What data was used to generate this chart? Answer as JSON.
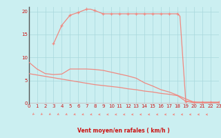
{
  "bg_color": "#cbeff1",
  "grid_color": "#a8d8dc",
  "line_color": "#f08880",
  "text_color": "#cc1111",
  "axis_color": "#666666",
  "xlabel": "Vent moyen/en rafales ( km/h )",
  "xlim": [
    0,
    23
  ],
  "ylim": [
    0,
    21
  ],
  "yticks": [
    0,
    5,
    10,
    15,
    20
  ],
  "xticks": [
    0,
    1,
    2,
    3,
    4,
    5,
    6,
    7,
    8,
    9,
    10,
    11,
    12,
    13,
    14,
    15,
    16,
    17,
    18,
    19,
    20,
    21,
    22,
    23
  ],
  "curve_upper_x": [
    3,
    4,
    5,
    6,
    7,
    7.5,
    8,
    9,
    10,
    11,
    12,
    13,
    14,
    15,
    16,
    17,
    18,
    18.3,
    19,
    20,
    21,
    22,
    23
  ],
  "curve_upper_y": [
    13.0,
    17.0,
    19.2,
    19.8,
    20.5,
    20.5,
    20.2,
    19.5,
    19.5,
    19.5,
    19.5,
    19.5,
    19.5,
    19.5,
    19.5,
    19.5,
    19.5,
    19.0,
    0.5,
    0.3,
    0.3,
    0.3,
    0.3
  ],
  "curve_upper_marker_x": [
    3,
    4,
    5,
    6,
    7,
    8,
    9,
    10,
    11,
    12,
    13,
    14,
    15,
    16,
    17,
    18,
    19,
    20,
    21,
    22,
    23
  ],
  "curve_upper_marker_y": [
    13.0,
    17.0,
    19.2,
    19.8,
    20.5,
    20.2,
    19.5,
    19.5,
    19.5,
    19.5,
    19.5,
    19.5,
    19.5,
    19.5,
    19.5,
    19.5,
    0.5,
    0.3,
    0.3,
    0.3,
    0.3
  ],
  "curve_mid_x": [
    0,
    1,
    2,
    3,
    4,
    5,
    6,
    7,
    8,
    9,
    10,
    11,
    12,
    13,
    14,
    15,
    16,
    17,
    18,
    19,
    20,
    21,
    22,
    23
  ],
  "curve_mid_y": [
    9.0,
    7.5,
    6.5,
    6.3,
    6.4,
    7.5,
    7.5,
    7.5,
    7.4,
    7.2,
    6.8,
    6.4,
    6.0,
    5.5,
    4.5,
    3.8,
    3.0,
    2.5,
    1.8,
    1.0,
    0.3,
    0.2,
    0.2,
    0.2
  ],
  "curve_low_x": [
    0,
    1,
    2,
    3,
    4,
    5,
    6,
    7,
    8,
    9,
    10,
    11,
    12,
    13,
    14,
    15,
    16,
    17,
    18,
    19,
    20,
    21,
    22,
    23
  ],
  "curve_low_y": [
    6.5,
    6.2,
    5.9,
    5.6,
    5.3,
    5.0,
    4.7,
    4.4,
    4.1,
    3.9,
    3.7,
    3.5,
    3.2,
    3.0,
    2.7,
    2.5,
    2.2,
    2.0,
    1.7,
    0.5,
    0.2,
    0.2,
    0.2,
    0.2
  ],
  "wind_arrows_x": [
    0,
    1,
    2,
    3,
    4,
    5,
    6,
    7,
    8,
    9,
    10,
    11,
    12,
    13,
    14,
    15,
    16,
    17,
    18,
    19,
    20,
    21
  ],
  "wind_angles": [
    225,
    220,
    215,
    210,
    205,
    200,
    195,
    190,
    185,
    185,
    185,
    185,
    185,
    185,
    185,
    185,
    185,
    185,
    185,
    185,
    185,
    180
  ]
}
